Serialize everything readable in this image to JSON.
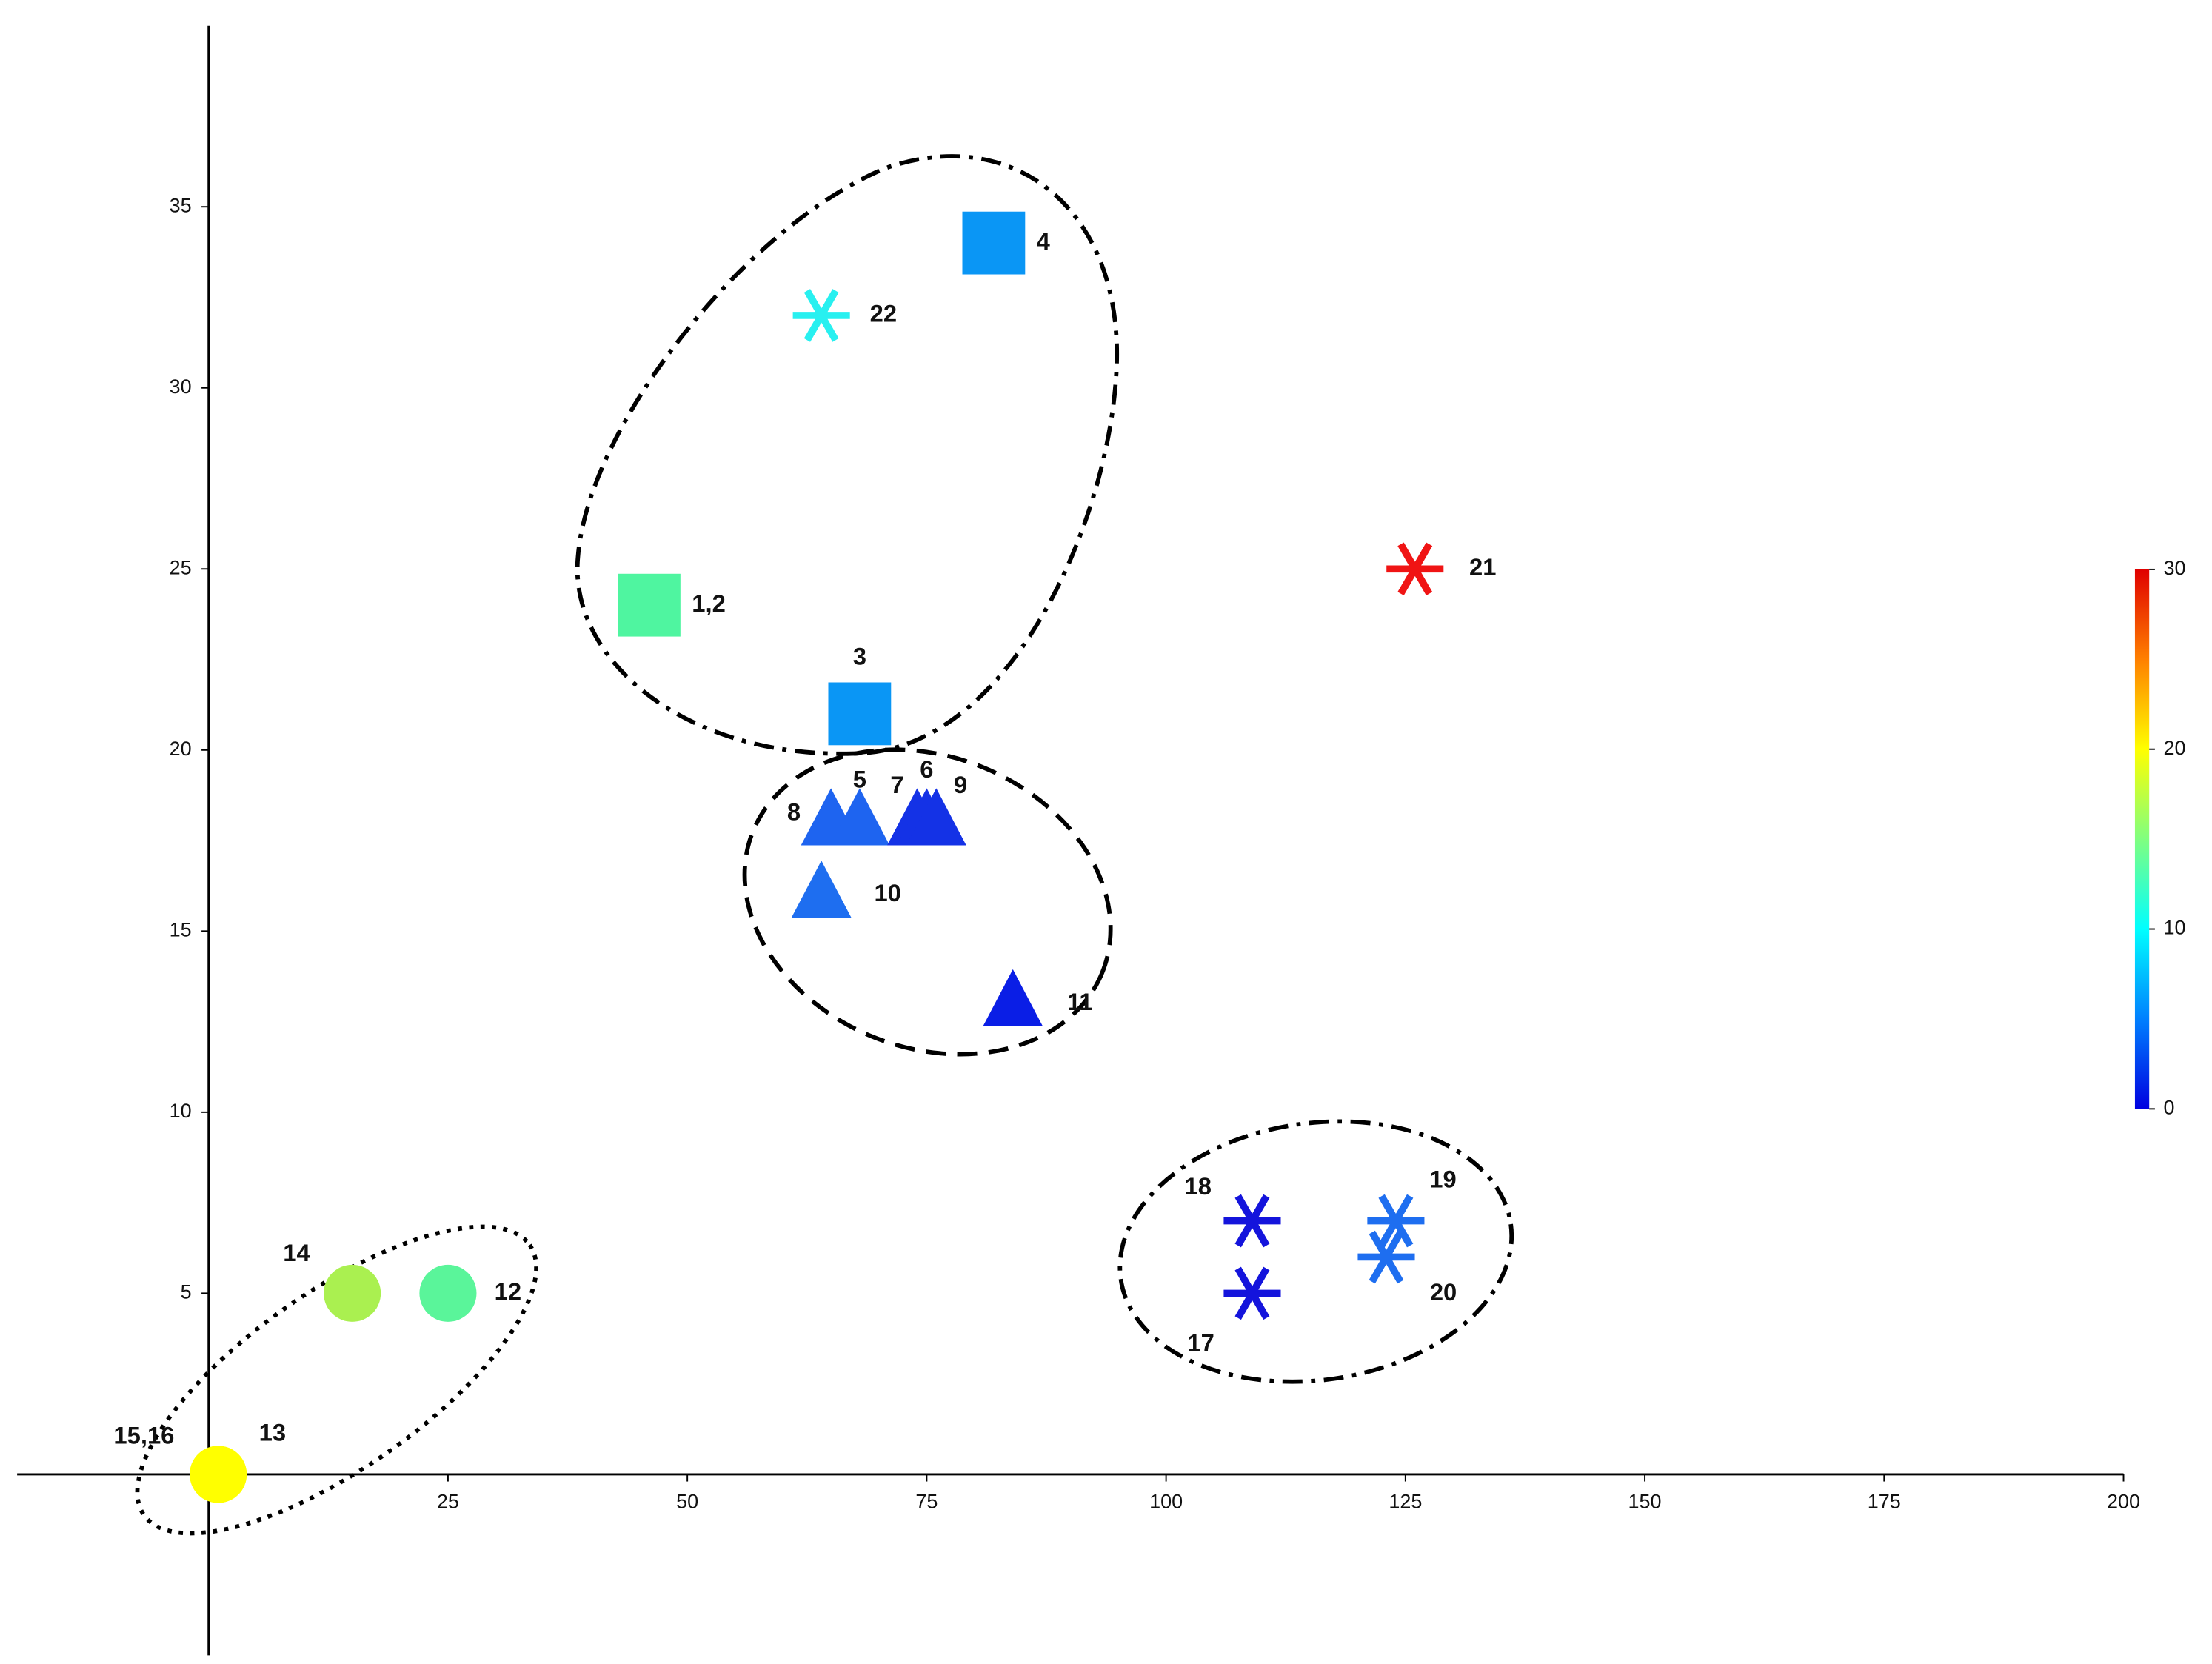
{
  "chart_data": {
    "type": "scatter",
    "xlim": [
      -20,
      200
    ],
    "xticks": [
      25,
      50,
      75,
      100,
      125,
      150,
      175,
      200
    ],
    "ylim": [
      -5,
      40
    ],
    "yticks": [
      5,
      10,
      15,
      20,
      25,
      30,
      35
    ],
    "colorbar": {
      "lim": [
        0,
        30
      ],
      "ticks": [
        0,
        10,
        20,
        30
      ],
      "colors": [
        "#0000e0",
        "#0080ff",
        "#00ffff",
        "#80ff80",
        "#ffff00",
        "#ff8000",
        "#e00000"
      ]
    },
    "points": [
      {
        "label": "1,2",
        "x": 46,
        "y": 24,
        "marker": "square",
        "color": "#4ff5a0"
      },
      {
        "label": "3",
        "x": 68,
        "y": 21,
        "marker": "square",
        "color": "#0a96f5"
      },
      {
        "label": "4",
        "x": 82,
        "y": 34,
        "marker": "square",
        "color": "#0a96f5"
      },
      {
        "label": "22",
        "x": 64,
        "y": 32,
        "marker": "asterisk",
        "color": "#28f0f0"
      },
      {
        "label": "21",
        "x": 126,
        "y": 25,
        "marker": "asterisk",
        "color": "#f01414"
      },
      {
        "label": "8",
        "x": 65,
        "y": 18,
        "marker": "triangle",
        "color": "#1e64f0"
      },
      {
        "label": "5",
        "x": 68,
        "y": 18,
        "marker": "triangle",
        "color": "#1e64f0"
      },
      {
        "label": "7",
        "x": 74,
        "y": 18,
        "marker": "triangle",
        "color": "#1432e6"
      },
      {
        "label": "6",
        "x": 75,
        "y": 18,
        "marker": "triangle",
        "color": "#1432e6"
      },
      {
        "label": "9",
        "x": 76,
        "y": 18,
        "marker": "triangle",
        "color": "#1432e6"
      },
      {
        "label": "10",
        "x": 64,
        "y": 16,
        "marker": "triangle",
        "color": "#1e6ef0"
      },
      {
        "label": "11",
        "x": 84,
        "y": 13,
        "marker": "triangle",
        "color": "#0a1ee6"
      },
      {
        "label": "18",
        "x": 109,
        "y": 7,
        "marker": "asterisk",
        "color": "#1414dc"
      },
      {
        "label": "17",
        "x": 109,
        "y": 5,
        "marker": "asterisk",
        "color": "#1414dc"
      },
      {
        "label": "19",
        "x": 124,
        "y": 7,
        "marker": "asterisk",
        "color": "#1e6ef0"
      },
      {
        "label": "20",
        "x": 123,
        "y": 6,
        "marker": "asterisk",
        "color": "#1e6ef0"
      },
      {
        "label": "14",
        "x": 15,
        "y": 5,
        "marker": "circle",
        "color": "#aaf050"
      },
      {
        "label": "12",
        "x": 25,
        "y": 5,
        "marker": "circle",
        "color": "#5af59a"
      },
      {
        "label": "15,16",
        "x": 1,
        "y": 0,
        "marker": "circle",
        "color": "#ffff00"
      },
      {
        "label": "13",
        "x": 1,
        "y": 0,
        "marker": "circle",
        "color": "#ffff00"
      }
    ]
  }
}
